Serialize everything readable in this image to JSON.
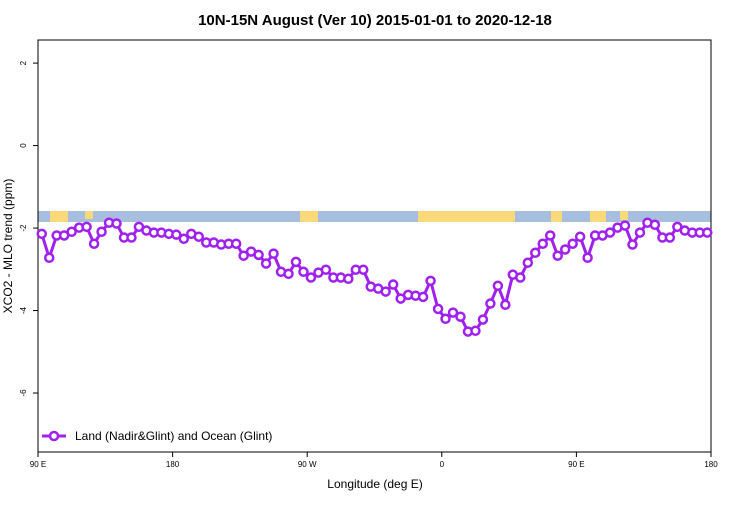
{
  "chart_data": {
    "type": "line",
    "title": "10N-15N August (Ver 10)   2015-01-01 to 2020-12-18",
    "x_label": "Longitude (deg E)",
    "y_label": "XCO2 - MLO trend (ppm)",
    "x": [
      92.5,
      97.5,
      102.5,
      107.5,
      112.5,
      117.5,
      122.5,
      127.5,
      132.5,
      137.5,
      142.5,
      147.5,
      152.5,
      157.5,
      162.5,
      167.5,
      172.5,
      177.5,
      182.5,
      187.5,
      192.5,
      197.5,
      202.5,
      207.5,
      212.5,
      217.5,
      222.5,
      227.5,
      232.5,
      237.5,
      242.5,
      247.5,
      252.5,
      257.5,
      262.5,
      267.5,
      272.5,
      277.5,
      282.5,
      287.5,
      292.5,
      297.5,
      302.5,
      307.5,
      312.5,
      317.5,
      322.5,
      327.5,
      332.5,
      337.5,
      342.5,
      347.5,
      352.5,
      357.5,
      362.5,
      367.5,
      372.5,
      377.5,
      382.5,
      387.5,
      392.5,
      397.5,
      402.5,
      407.5,
      412.5,
      417.5,
      422.5,
      427.5,
      432.5,
      437.5,
      442.5,
      447.5,
      452.5,
      457.5,
      462.5,
      467.5,
      472.5,
      477.5,
      482.5,
      487.5,
      492.5,
      497.5,
      502.5,
      507.5,
      512.5,
      517.5,
      522.5,
      527.5,
      532.5,
      537.5
    ],
    "series": [
      {
        "name": "Land (Nadir&Glint) and Ocean (Glint)",
        "color": "#a020f0",
        "values": [
          -2.14,
          -2.72,
          -2.18,
          -2.18,
          -2.09,
          -1.99,
          -1.97,
          -2.38,
          -2.09,
          -1.87,
          -1.89,
          -2.23,
          -2.23,
          -1.97,
          -2.06,
          -2.11,
          -2.11,
          -2.14,
          -2.16,
          -2.26,
          -2.14,
          -2.21,
          -2.35,
          -2.35,
          -2.4,
          -2.38,
          -2.38,
          -2.67,
          -2.57,
          -2.65,
          -2.86,
          -2.62,
          -3.06,
          -3.11,
          -2.82,
          -3.06,
          -3.2,
          -3.08,
          -3.01,
          -3.2,
          -3.2,
          -3.23,
          -3.01,
          -3.01,
          -3.42,
          -3.47,
          -3.54,
          -3.37,
          -3.71,
          -3.62,
          -3.64,
          -3.67,
          -3.28,
          -3.96,
          -4.2,
          -4.05,
          -4.15,
          -4.51,
          -4.49,
          -4.22,
          -3.83,
          -3.4,
          -3.86,
          -3.13,
          -3.2,
          -2.84,
          -2.6,
          -2.38,
          -2.18,
          -2.67,
          -2.52,
          -2.38,
          -2.21,
          -2.72,
          -2.18,
          -2.18,
          -2.11,
          -1.99,
          -1.94,
          -2.4,
          -2.11,
          -1.87,
          -1.92,
          -2.23,
          -2.23,
          -1.97,
          -2.06,
          -2.11,
          -2.11,
          -2.11
        ]
      }
    ],
    "xlim": [
      90,
      540
    ],
    "xticks": [
      {
        "value": 90,
        "label": "90 E"
      },
      180,
      {
        "value": 270,
        "label": "90 W"
      },
      {
        "value": 360,
        "label": "0"
      },
      {
        "value": 450,
        "label": "90 E"
      },
      {
        "value": 540,
        "label": "180"
      }
    ],
    "ylim": [
      -7.43,
      2.56
    ],
    "yticks": [
      -6,
      -4,
      -2,
      0,
      2
    ],
    "legend": "bottom-left"
  }
}
